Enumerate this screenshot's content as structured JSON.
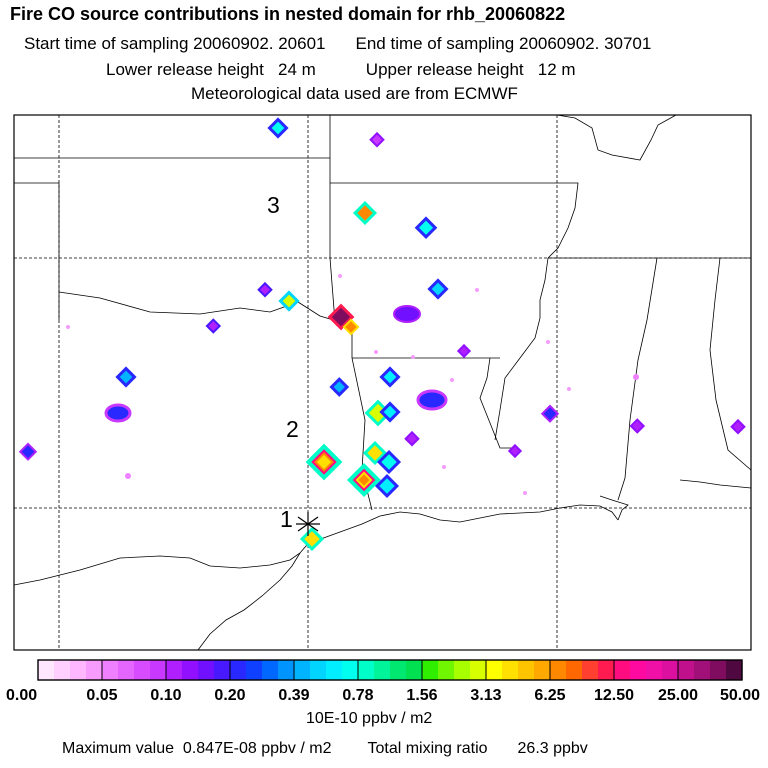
{
  "header": {
    "title": "Fire CO source contributions in nested domain for rhb_20060822",
    "start_label": "Start time of sampling",
    "start_value": "20060902. 20601",
    "end_label": "End time of sampling",
    "end_value": "20060902. 30701",
    "lower_label": "Lower release height",
    "lower_value": "24 m",
    "upper_label": "Upper release height",
    "upper_value": "12 m",
    "met_note": "Meteorological data used are from ECMWF"
  },
  "map": {
    "position_labels": [
      {
        "id": "1",
        "text": "1"
      },
      {
        "id": "2",
        "text": "2"
      },
      {
        "id": "3",
        "text": "3"
      }
    ]
  },
  "colorbar": {
    "colors": [
      "#ffe6ff",
      "#ffd0ff",
      "#ffb8ff",
      "#f79bff",
      "#ef80ff",
      "#e466ff",
      "#d84cff",
      "#c838ff",
      "#b020ff",
      "#9010ff",
      "#7010ff",
      "#4818ff",
      "#2828ff",
      "#1040ff",
      "#0068ff",
      "#0094ff",
      "#00b4ff",
      "#00d4ff",
      "#00eeff",
      "#00ffee",
      "#00ffc8",
      "#00f59a",
      "#00e870",
      "#00e050",
      "#30ee00",
      "#70f600",
      "#a8ff00",
      "#d8ff00",
      "#ffff00",
      "#ffe000",
      "#ffc400",
      "#ffa800",
      "#ff8800",
      "#ff6800",
      "#ff4030",
      "#ff1a50",
      "#ff0d80",
      "#ff0aa0",
      "#f010a8",
      "#dc10a0",
      "#c0108c",
      "#a01078",
      "#800c60",
      "#500840"
    ],
    "labels": [
      "0.00",
      "0.05",
      "0.10",
      "0.20",
      "0.39",
      "0.78",
      "1.56",
      "3.13",
      "6.25",
      "12.50",
      "25.00",
      "50.00"
    ],
    "units": "10E-10 ppbv / m2"
  },
  "footer": {
    "max_label": "Maximum value",
    "max_value": "0.847E-08 ppbv / m2",
    "total_label": "Total mixing ratio",
    "total_value": "26.3 ppbv"
  }
}
